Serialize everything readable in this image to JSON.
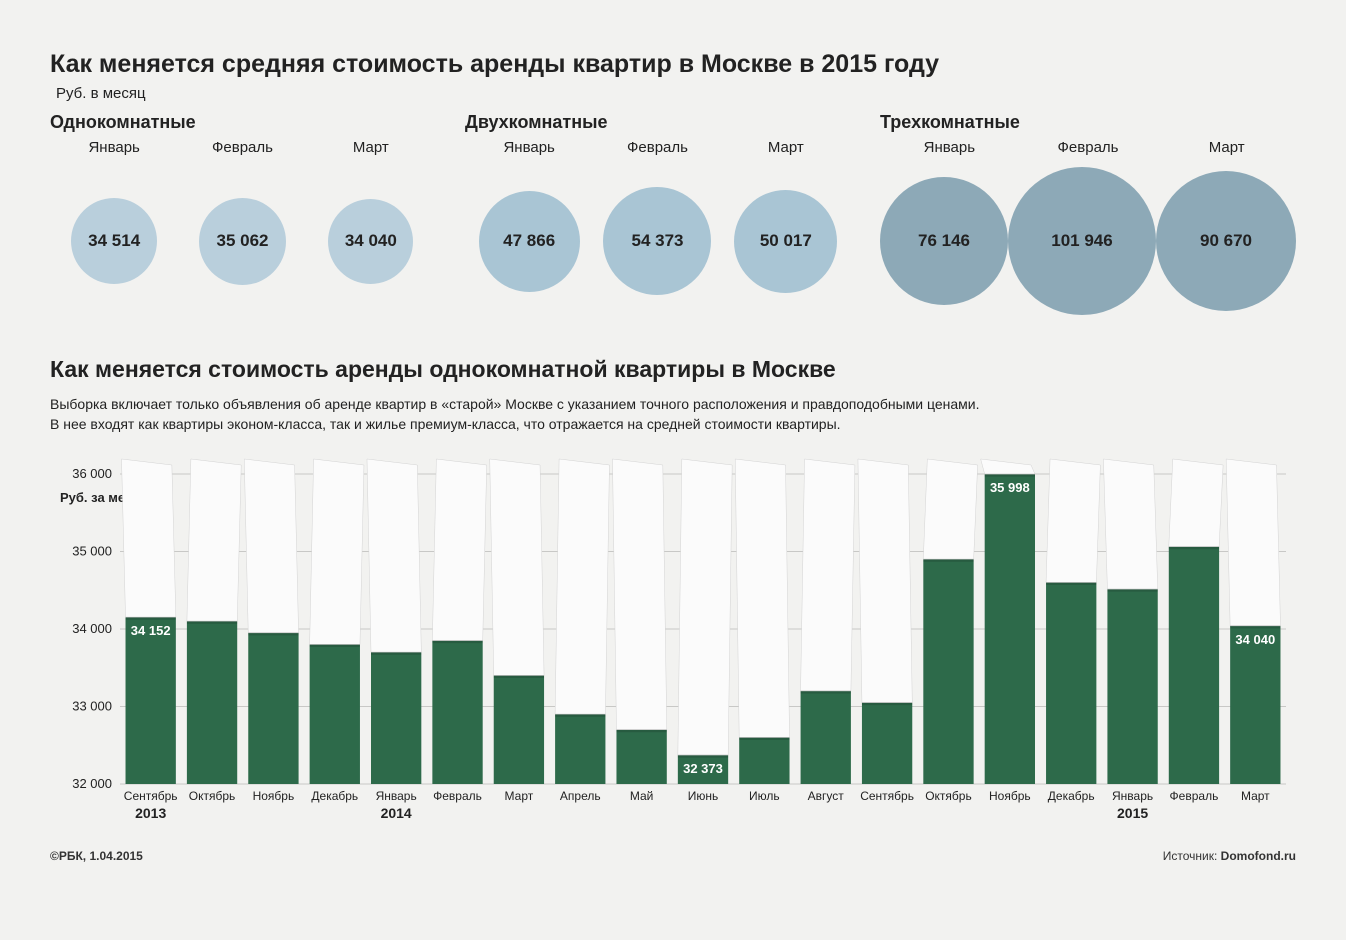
{
  "title1": "Как меняется средняя стоимость аренды квартир в Москве в 2015 году",
  "unit_top": "Руб. в месяц",
  "bubble_groups": [
    {
      "title": "Однокомнатные",
      "color": "#b9cfdc",
      "text_color": "#222222",
      "font_size": 17,
      "items": [
        {
          "month": "Январь",
          "value": 34514,
          "label": "34 514",
          "diameter": 86
        },
        {
          "month": "Февраль",
          "value": 35062,
          "label": "35 062",
          "diameter": 87
        },
        {
          "month": "Март",
          "value": 34040,
          "label": "34 040",
          "diameter": 85
        }
      ]
    },
    {
      "title": "Двухкомнатные",
      "color": "#a9c5d4",
      "text_color": "#222222",
      "font_size": 17,
      "items": [
        {
          "month": "Январь",
          "value": 47866,
          "label": "47 866",
          "diameter": 101
        },
        {
          "month": "Февраль",
          "value": 54373,
          "label": "54 373",
          "diameter": 108
        },
        {
          "month": "Март",
          "value": 50017,
          "label": "50 017",
          "diameter": 103
        }
      ]
    },
    {
      "title": "Трехкомнатные",
      "color": "#8da9b7",
      "text_color": "#222222",
      "font_size": 17,
      "items": [
        {
          "month": "Январь",
          "value": 76146,
          "label": "76 146",
          "diameter": 128
        },
        {
          "month": "Февраль",
          "value": 101946,
          "label": "101 946",
          "diameter": 148
        },
        {
          "month": "Март",
          "value": 90670,
          "label": "90 670",
          "diameter": 140
        }
      ]
    }
  ],
  "title2": "Как меняется стоимость аренды однокомнатной квартиры в Москве",
  "description": "Выборка включает только объявления об аренде квартир в «старой» Москве с указанием точного расположения и правдоподобными ценами.\nВ нее входят как квартиры эконом-класса, так и жилье премиум-класса, что отражается на средней стоимости квартиры.",
  "bar_chart": {
    "type": "bar",
    "y_axis_label": "Руб. за месяц",
    "ylim": [
      32000,
      36000
    ],
    "yticks": [
      32000,
      33000,
      34000,
      35000,
      36000
    ],
    "ytick_labels": [
      "32 000",
      "33 000",
      "34 000",
      "35 000",
      "36 000"
    ],
    "grid_color": "#c8c8c6",
    "bar_fill": "#2d6a4a",
    "paper_fill": "#fbfbfb",
    "paper_stroke": "#d3d3d3",
    "background": "#f2f2f0",
    "label_fontsize": 12,
    "axis_fontsize": 13,
    "year_fontsize": 14,
    "value_label_color_dark": "#ffffff",
    "value_label_color_light": "#222222",
    "categories": [
      {
        "month": "Сентябрь",
        "year": "2013",
        "value": 34152,
        "show_label": true,
        "label": "34 152",
        "label_pos": "inside"
      },
      {
        "month": "Октябрь",
        "year": "",
        "value": 34100,
        "show_label": false
      },
      {
        "month": "Ноябрь",
        "year": "",
        "value": 33950,
        "show_label": false
      },
      {
        "month": "Декабрь",
        "year": "",
        "value": 33800,
        "show_label": false
      },
      {
        "month": "Январь",
        "year": "2014",
        "value": 33700,
        "show_label": false
      },
      {
        "month": "Февраль",
        "year": "",
        "value": 33850,
        "show_label": false
      },
      {
        "month": "Март",
        "year": "",
        "value": 33400,
        "show_label": false
      },
      {
        "month": "Апрель",
        "year": "",
        "value": 32900,
        "show_label": false
      },
      {
        "month": "Май",
        "year": "",
        "value": 32700,
        "show_label": false
      },
      {
        "month": "Июнь",
        "year": "",
        "value": 32373,
        "show_label": true,
        "label": "32 373",
        "label_pos": "inside"
      },
      {
        "month": "Июль",
        "year": "",
        "value": 32600,
        "show_label": false
      },
      {
        "month": "Август",
        "year": "",
        "value": 33200,
        "show_label": false
      },
      {
        "month": "Сентябрь",
        "year": "",
        "value": 33050,
        "show_label": false
      },
      {
        "month": "Октябрь",
        "year": "",
        "value": 34900,
        "show_label": false
      },
      {
        "month": "Ноябрь",
        "year": "",
        "value": 35998,
        "show_label": true,
        "label": "35 998",
        "label_pos": "inside"
      },
      {
        "month": "Декабрь",
        "year": "",
        "value": 34600,
        "show_label": false
      },
      {
        "month": "Январь",
        "year": "2015",
        "value": 34514,
        "show_label": false
      },
      {
        "month": "Февраль",
        "year": "",
        "value": 35062,
        "show_label": false
      },
      {
        "month": "Март",
        "year": "",
        "value": 34040,
        "show_label": true,
        "label": "34 040",
        "label_pos": "inside"
      }
    ]
  },
  "footer_left": "©РБК, 1.04.2015",
  "footer_right_prefix": "Источник: ",
  "footer_right_source": "Domofond.ru"
}
